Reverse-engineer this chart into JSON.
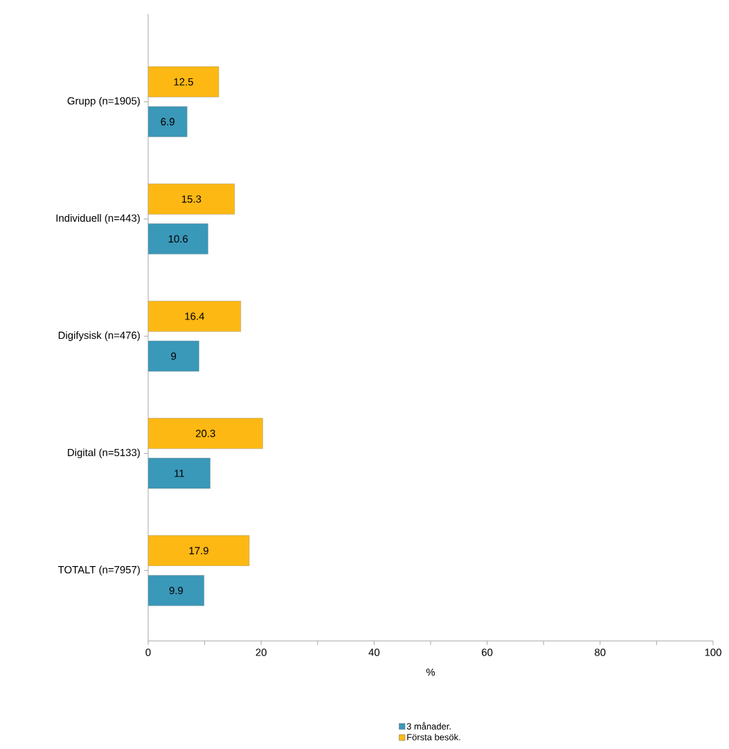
{
  "chart_data": {
    "type": "bar",
    "orientation": "horizontal",
    "xlabel": "%",
    "categories": [
      "Grupp (n=1905)",
      "Individuell (n=443)",
      "Digifysisk (n=476)",
      "Digital (n=5133)",
      "TOTALT (n=7957)"
    ],
    "series": [
      {
        "name": "3 månader.",
        "color": "#3a98b8",
        "values": [
          6.9,
          10.6,
          9,
          11,
          9.9
        ]
      },
      {
        "name": "Första besök.",
        "color": "#fdb813",
        "values": [
          12.5,
          15.3,
          16.4,
          20.3,
          17.9
        ]
      }
    ],
    "xlim": [
      0,
      100
    ],
    "xticks": [
      0,
      {
        "value": 10,
        "label": null
      },
      20,
      {
        "value": 30,
        "label": null
      },
      40,
      {
        "value": 50,
        "label": null
      },
      60,
      {
        "value": 70,
        "label": null
      },
      80,
      {
        "value": 90,
        "label": null
      },
      100
    ],
    "data_labels": true,
    "grid": false,
    "legend": "bottom"
  }
}
